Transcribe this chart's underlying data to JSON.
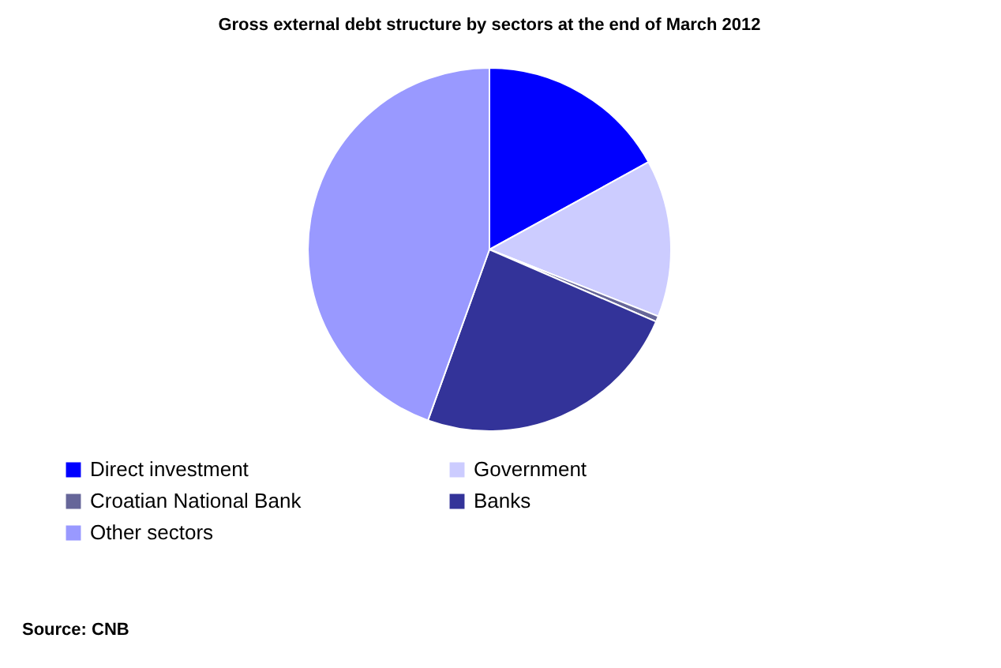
{
  "chart_data": {
    "type": "pie",
    "title": "Gross external debt structure by sectors at the end of March 2012",
    "categories": [
      "Direct investment",
      "Government",
      "Croatian National Bank",
      "Banks",
      "Other sectors"
    ],
    "values": [
      17,
      14,
      0.5,
      24,
      44.5
    ],
    "colors": [
      "#0000ff",
      "#ccccff",
      "#666699",
      "#333399",
      "#9999ff"
    ],
    "legend": "bottom",
    "annotations": [
      "Source: CNB"
    ]
  }
}
